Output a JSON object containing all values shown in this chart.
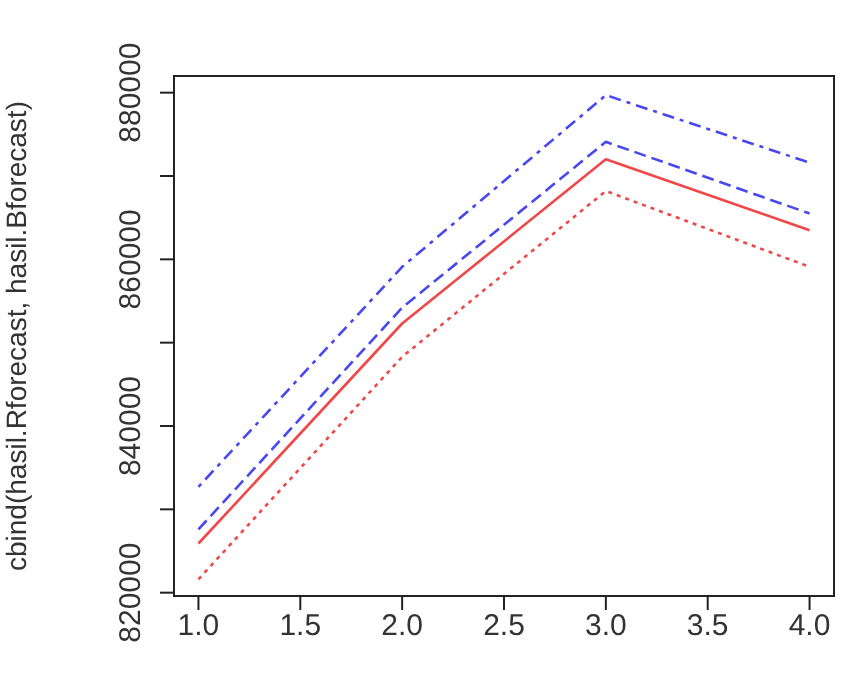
{
  "chart_data": {
    "type": "line",
    "ylabel": "cbind(hasil.Rforecast, hasil.Bforecast)",
    "x": [
      1,
      2,
      3,
      4
    ],
    "series": [
      {
        "color": "#f04848",
        "line_style": "solid",
        "values": [
          825900,
          852300,
          872000,
          863500
        ]
      },
      {
        "color": "#f04848",
        "line_style": "dotted",
        "values": [
          821600,
          848300,
          868200,
          859100
        ]
      },
      {
        "color": "#4848f0",
        "line_style": "dashed",
        "values": [
          827600,
          854200,
          874100,
          865500
        ]
      },
      {
        "color": "#4848f0",
        "line_style": "dashdot",
        "values": [
          832700,
          859100,
          879700,
          871600
        ]
      }
    ],
    "xlim": [
      0.88,
      4.12
    ],
    "xticks": [
      {
        "value": 1,
        "label": "1.0"
      },
      {
        "value": 1.5,
        "label": "1.5"
      },
      {
        "value": 2,
        "label": "2.0"
      },
      {
        "value": 2.5,
        "label": "2.5"
      },
      {
        "value": 3,
        "label": "3.0"
      },
      {
        "value": 3.5,
        "label": "3.5"
      },
      {
        "value": 4,
        "label": "4.0"
      }
    ],
    "ylim": [
      819600,
      882000
    ],
    "yticks": [
      820000,
      {
        "value": 830000,
        "label": null
      },
      840000,
      {
        "value": 850000,
        "label": null
      },
      860000,
      {
        "value": 870000,
        "label": null
      },
      880000
    ],
    "grid": false,
    "legend": false,
    "marker": "none"
  }
}
